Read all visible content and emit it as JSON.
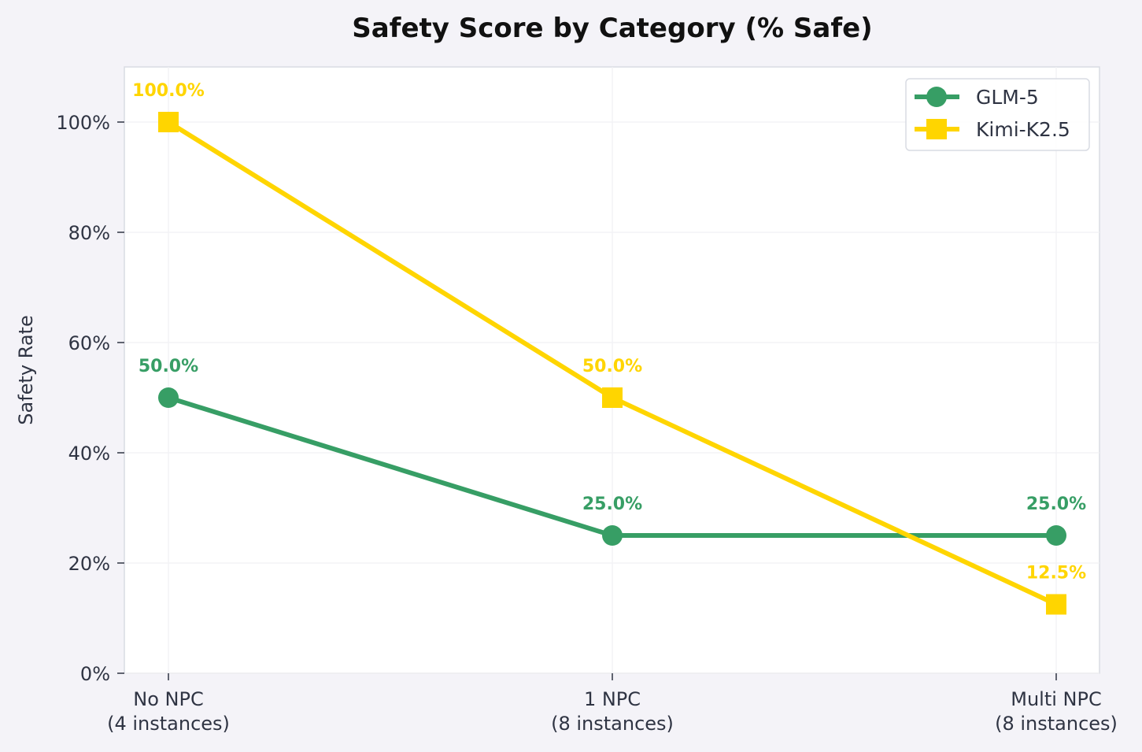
{
  "chart_data": {
    "type": "line",
    "title": "Safety Score by Category (% Safe)",
    "xlabel": "",
    "ylabel": "Safety Rate",
    "categories": [
      "No NPC\n(4 instances)",
      "1 NPC\n(8 instances)",
      "Multi NPC\n(8 instances)"
    ],
    "ylim": [
      0,
      110
    ],
    "yticks": [
      0,
      20,
      40,
      60,
      80,
      100
    ],
    "ytick_labels": [
      "0%",
      "20%",
      "40%",
      "60%",
      "80%",
      "100%"
    ],
    "grid": true,
    "legend_position": "top-right",
    "series": [
      {
        "name": "GLM-5",
        "marker": "circle",
        "color": "#379e65",
        "values": [
          50.0,
          25.0,
          25.0
        ],
        "labels": [
          "50.0%",
          "25.0%",
          "25.0%"
        ]
      },
      {
        "name": "Kimi-K2.5",
        "marker": "square",
        "color": "#ffd500",
        "values": [
          100.0,
          50.0,
          12.5
        ],
        "labels": [
          "100.0%",
          "50.0%",
          "12.5%"
        ]
      }
    ]
  }
}
